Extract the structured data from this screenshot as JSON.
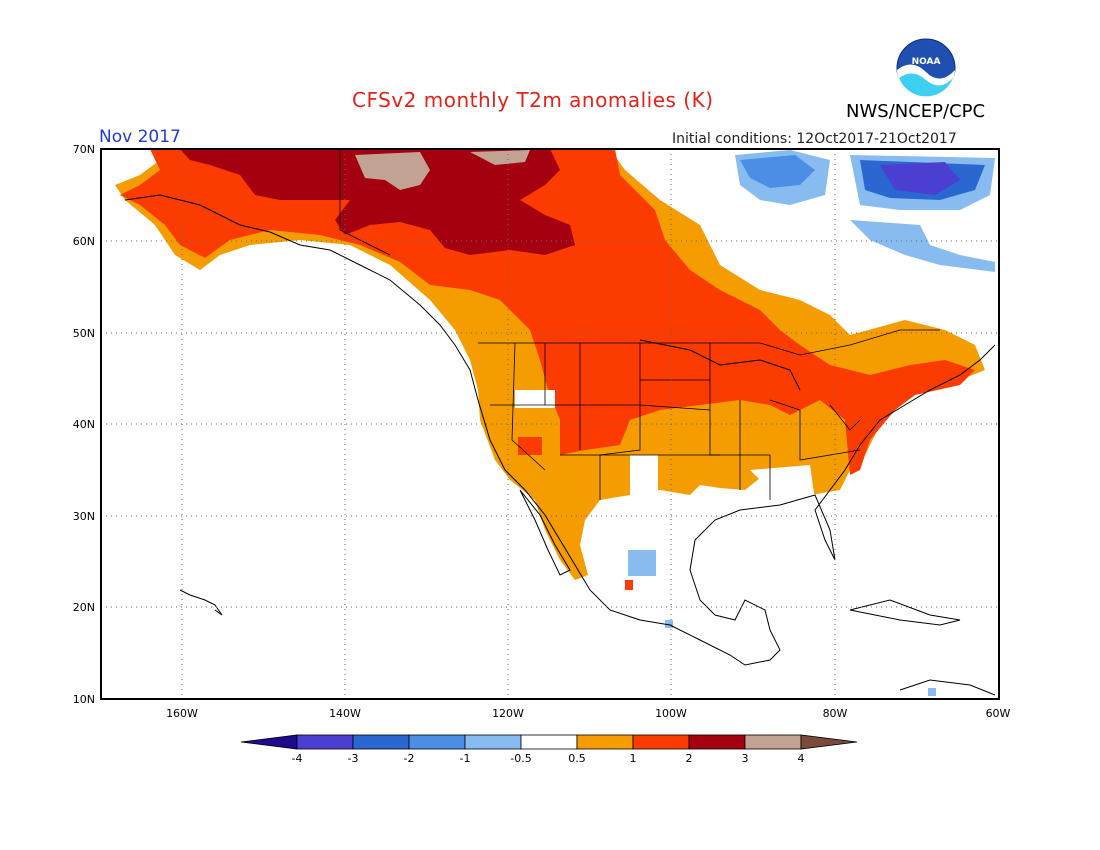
{
  "title": "CFSv2 monthly T2m anomalies (K)",
  "month": "Nov 2017",
  "agency": "NWS/NCEP/CPC",
  "logo_text": "NOAA",
  "initial_conditions": "Initial conditions: 12Oct2017-21Oct2017",
  "map": {
    "lon_range": [
      -172,
      -60
    ],
    "lat_range": [
      10,
      70
    ],
    "lat_labels": [
      "10N",
      "20N",
      "30N",
      "40N",
      "50N",
      "60N",
      "70N"
    ],
    "lon_labels": [
      "160W",
      "140W",
      "120W",
      "100W",
      "80W",
      "60W"
    ],
    "grid": "dotted"
  },
  "colorbar": {
    "labels": [
      "-4",
      "-3",
      "-2",
      "-1",
      "-0.5",
      "0.5",
      "1",
      "2",
      "3",
      "4"
    ],
    "colors": [
      "#1d0a8c",
      "#4b3fd1",
      "#2a67d0",
      "#4b8ee6",
      "#88bcf0",
      "#ffffff",
      "#f59d00",
      "#fc3b00",
      "#a50010",
      "#c2a393",
      "#7a4a3a"
    ]
  }
}
